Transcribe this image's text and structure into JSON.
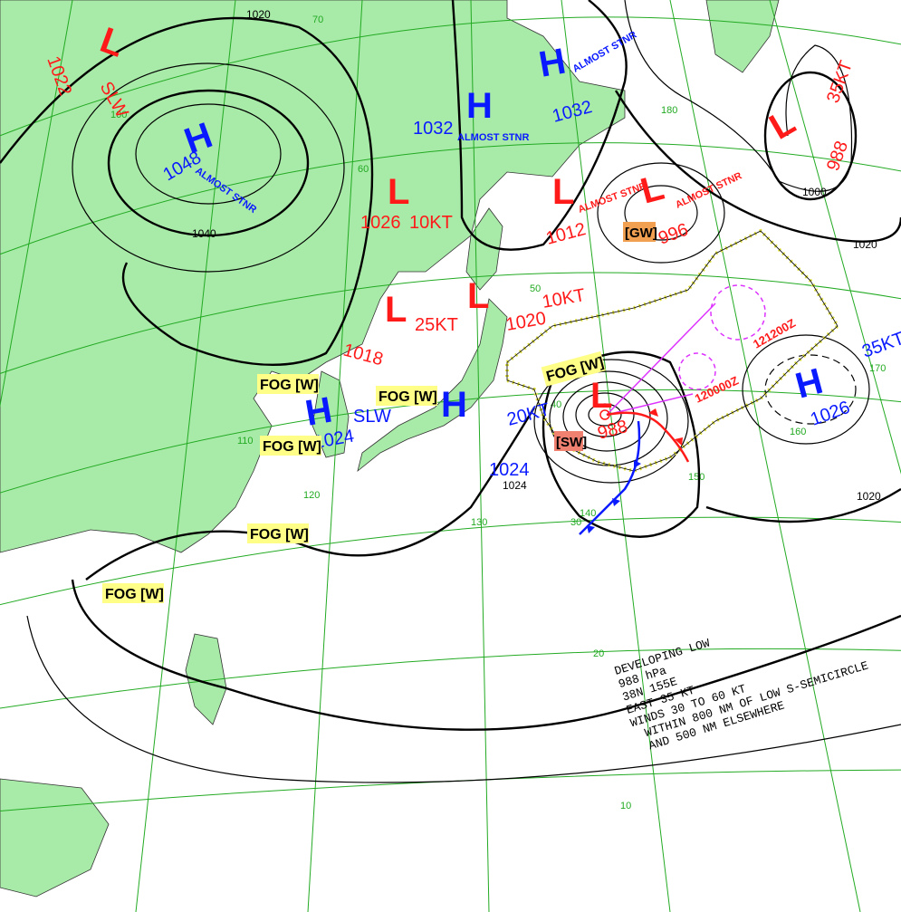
{
  "colors": {
    "low": "#ff1a1a",
    "high": "#0a1aff",
    "land": "#a8eaa8",
    "grid": "#22aa22",
    "fog": "#ffff88",
    "warm_front": "#ff1a1a",
    "cold_front": "#0a1aff",
    "warning_area": "#e0e040",
    "track": "#dd33ff"
  },
  "systems": [
    {
      "type": "L",
      "pressure": "1022",
      "motion": "SLW"
    },
    {
      "type": "H",
      "pressure": "1048",
      "motion": "ALMOST STNR"
    },
    {
      "type": "H",
      "pressure": "1032",
      "motion": "ALMOST STNR"
    },
    {
      "type": "H",
      "pressure": "1032",
      "motion": "ALMOST STNR"
    },
    {
      "type": "L",
      "pressure": "1026",
      "motion": "10KT"
    },
    {
      "type": "L",
      "pressure": "1012",
      "motion": "ALMOST STNR"
    },
    {
      "type": "L",
      "pressure": "996",
      "motion": "ALMOST STNR",
      "warning": "[GW]"
    },
    {
      "type": "L",
      "pressure": "988",
      "motion": "35KT"
    },
    {
      "type": "L",
      "pressure": "1018",
      "motion": "25KT"
    },
    {
      "type": "L",
      "pressure": "1020",
      "motion": "10KT"
    },
    {
      "type": "H",
      "pressure": "1024",
      "motion": "SLW"
    },
    {
      "type": "H",
      "pressure": "1024",
      "motion": "20KT"
    },
    {
      "type": "L",
      "pressure": "988",
      "motion": "",
      "warning": "[SW]"
    },
    {
      "type": "H",
      "pressure": "1026",
      "motion": "35KT"
    }
  ],
  "fog_label": "FOG [W]",
  "isobar_labels": [
    "1020",
    "1040",
    "1000",
    "1020",
    "1020",
    "1024"
  ],
  "forecast_times": [
    "120000Z",
    "121200Z"
  ],
  "grid_labels": [
    "70",
    "60",
    "50",
    "40",
    "30",
    "20",
    "10",
    "100",
    "110",
    "120",
    "130",
    "140",
    "150",
    "160",
    "170",
    "180"
  ],
  "note": {
    "lines": [
      "DEVELOPING LOW",
      "988 hPa",
      "38N 155E",
      "EAST 35 KT",
      "WINDS 30 TO 60 KT",
      "WITHIN 800 NM OF LOW S-SEMICIRCLE",
      "AND 500 NM ELSEWHERE"
    ]
  }
}
